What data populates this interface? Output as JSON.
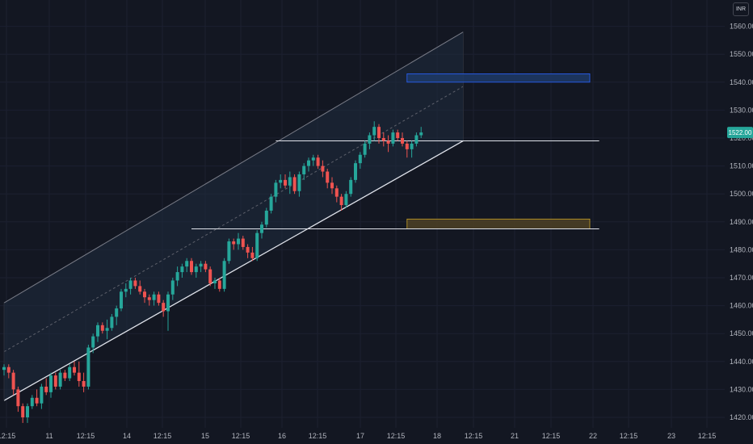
{
  "currency": "INR",
  "last_price_label": "1522.00",
  "colors": {
    "background": "#131722",
    "up": "#26a69a",
    "down": "#ef5350",
    "axis_text": "#b2b5be",
    "channel_fill": "#1f2b3e",
    "resistance_zone": "#1e3a66",
    "support_zone": "#4d4125"
  },
  "chart_data": {
    "type": "candlestick",
    "ylim": [
      1416,
      1566
    ],
    "y_ticks": [
      "1560.00",
      "1550.00",
      "1540.00",
      "1530.00",
      "1520.00",
      "1510.00",
      "1500.00",
      "1490.00",
      "1480.00",
      "1470.00",
      "1460.00",
      "1450.00",
      "1440.00",
      "1430.00",
      "1420.00"
    ],
    "x_ticks": [
      "12:15",
      "11",
      "12:15",
      "14",
      "12:15",
      "15",
      "12:15",
      "16",
      "12:15",
      "17",
      "12:15",
      "18",
      "12:15",
      "21",
      "12:15",
      "22",
      "12:15",
      "23",
      "12:15"
    ],
    "ohlc": [
      [
        1437,
        1439,
        1435,
        1438
      ],
      [
        1438,
        1439,
        1434,
        1436
      ],
      [
        1436,
        1437,
        1428,
        1430
      ],
      [
        1430,
        1431,
        1422,
        1424
      ],
      [
        1424,
        1425,
        1418,
        1420
      ],
      [
        1420,
        1425,
        1418,
        1424
      ],
      [
        1424,
        1428,
        1423,
        1427
      ],
      [
        1427,
        1430,
        1424,
        1425
      ],
      [
        1425,
        1432,
        1423,
        1431
      ],
      [
        1431,
        1434,
        1428,
        1429
      ],
      [
        1429,
        1436,
        1427,
        1435
      ],
      [
        1435,
        1436,
        1430,
        1431
      ],
      [
        1431,
        1437,
        1430,
        1436
      ],
      [
        1436,
        1437,
        1433,
        1434
      ],
      [
        1434,
        1439,
        1433,
        1438
      ],
      [
        1438,
        1440,
        1435,
        1436
      ],
      [
        1436,
        1440,
        1431,
        1433
      ],
      [
        1433,
        1436,
        1429,
        1431
      ],
      [
        1431,
        1446,
        1430,
        1445
      ],
      [
        1445,
        1450,
        1443,
        1449
      ],
      [
        1449,
        1454,
        1447,
        1453
      ],
      [
        1453,
        1454,
        1450,
        1451
      ],
      [
        1451,
        1455,
        1448,
        1452
      ],
      [
        1452,
        1457,
        1451,
        1456
      ],
      [
        1456,
        1460,
        1453,
        1459
      ],
      [
        1459,
        1466,
        1458,
        1465
      ],
      [
        1465,
        1468,
        1463,
        1466
      ],
      [
        1466,
        1470,
        1464,
        1469
      ],
      [
        1469,
        1470,
        1466,
        1467
      ],
      [
        1467,
        1469,
        1464,
        1465
      ],
      [
        1465,
        1466,
        1461,
        1463
      ],
      [
        1463,
        1464,
        1460,
        1462
      ],
      [
        1462,
        1465,
        1460,
        1464
      ],
      [
        1464,
        1465,
        1460,
        1461
      ],
      [
        1461,
        1462,
        1456,
        1458
      ],
      [
        1458,
        1465,
        1451,
        1464
      ],
      [
        1464,
        1470,
        1462,
        1469
      ],
      [
        1469,
        1474,
        1467,
        1472
      ],
      [
        1472,
        1475,
        1470,
        1474
      ],
      [
        1474,
        1477,
        1472,
        1476
      ],
      [
        1476,
        1477,
        1471,
        1472
      ],
      [
        1472,
        1475,
        1470,
        1474
      ],
      [
        1474,
        1476,
        1472,
        1475
      ],
      [
        1475,
        1476,
        1472,
        1473
      ],
      [
        1473,
        1474,
        1467,
        1468
      ],
      [
        1468,
        1470,
        1466,
        1469
      ],
      [
        1469,
        1470,
        1465,
        1466
      ],
      [
        1466,
        1477,
        1465,
        1476
      ],
      [
        1476,
        1484,
        1475,
        1483
      ],
      [
        1483,
        1484,
        1480,
        1482
      ],
      [
        1482,
        1486,
        1480,
        1484
      ],
      [
        1484,
        1485,
        1480,
        1481
      ],
      [
        1481,
        1482,
        1477,
        1479
      ],
      [
        1479,
        1481,
        1476,
        1477
      ],
      [
        1477,
        1487,
        1476,
        1486
      ],
      [
        1486,
        1490,
        1484,
        1489
      ],
      [
        1489,
        1495,
        1488,
        1494
      ],
      [
        1494,
        1500,
        1493,
        1499
      ],
      [
        1499,
        1505,
        1497,
        1504
      ],
      [
        1504,
        1507,
        1502,
        1505
      ],
      [
        1505,
        1507,
        1502,
        1503
      ],
      [
        1503,
        1508,
        1500,
        1506
      ],
      [
        1506,
        1507,
        1500,
        1501
      ],
      [
        1501,
        1508,
        1499,
        1507
      ],
      [
        1507,
        1511,
        1505,
        1510
      ],
      [
        1510,
        1513,
        1508,
        1512
      ],
      [
        1512,
        1514,
        1510,
        1513
      ],
      [
        1513,
        1514,
        1509,
        1510
      ],
      [
        1510,
        1512,
        1506,
        1508
      ],
      [
        1508,
        1509,
        1502,
        1504
      ],
      [
        1504,
        1506,
        1500,
        1502
      ],
      [
        1502,
        1503,
        1497,
        1499
      ],
      [
        1499,
        1500,
        1494,
        1496
      ],
      [
        1496,
        1501,
        1495,
        1500
      ],
      [
        1500,
        1506,
        1499,
        1505
      ],
      [
        1505,
        1512,
        1504,
        1511
      ],
      [
        1511,
        1515,
        1509,
        1514
      ],
      [
        1514,
        1519,
        1513,
        1518
      ],
      [
        1518,
        1522,
        1516,
        1521
      ],
      [
        1521,
        1526,
        1519,
        1524
      ],
      [
        1524,
        1525,
        1518,
        1520
      ],
      [
        1520,
        1522,
        1517,
        1519
      ],
      [
        1519,
        1521,
        1515,
        1518
      ],
      [
        1518,
        1523,
        1517,
        1522
      ],
      [
        1522,
        1523,
        1519,
        1520
      ],
      [
        1520,
        1522,
        1517,
        1518
      ],
      [
        1518,
        1519,
        1513,
        1516
      ],
      [
        1516,
        1519,
        1513,
        1518
      ],
      [
        1518,
        1522,
        1517,
        1521
      ],
      [
        1521,
        1524,
        1520,
        1522
      ]
    ],
    "channel": {
      "upper": [
        [
          0,
          1461
        ],
        [
          98,
          1558
        ]
      ],
      "lower": [
        [
          0,
          1426
        ],
        [
          98,
          1519
        ]
      ]
    },
    "horizontal_levels": [
      {
        "value": 1519,
        "from": 58,
        "to": 127
      },
      {
        "value": 1487.5,
        "from": 40,
        "to": 127
      }
    ],
    "zones": [
      {
        "from": 86,
        "to": 125,
        "low": 1540,
        "high": 1543
      },
      {
        "from": 86,
        "to": 125,
        "low": 1487.5,
        "high": 1491
      }
    ]
  }
}
